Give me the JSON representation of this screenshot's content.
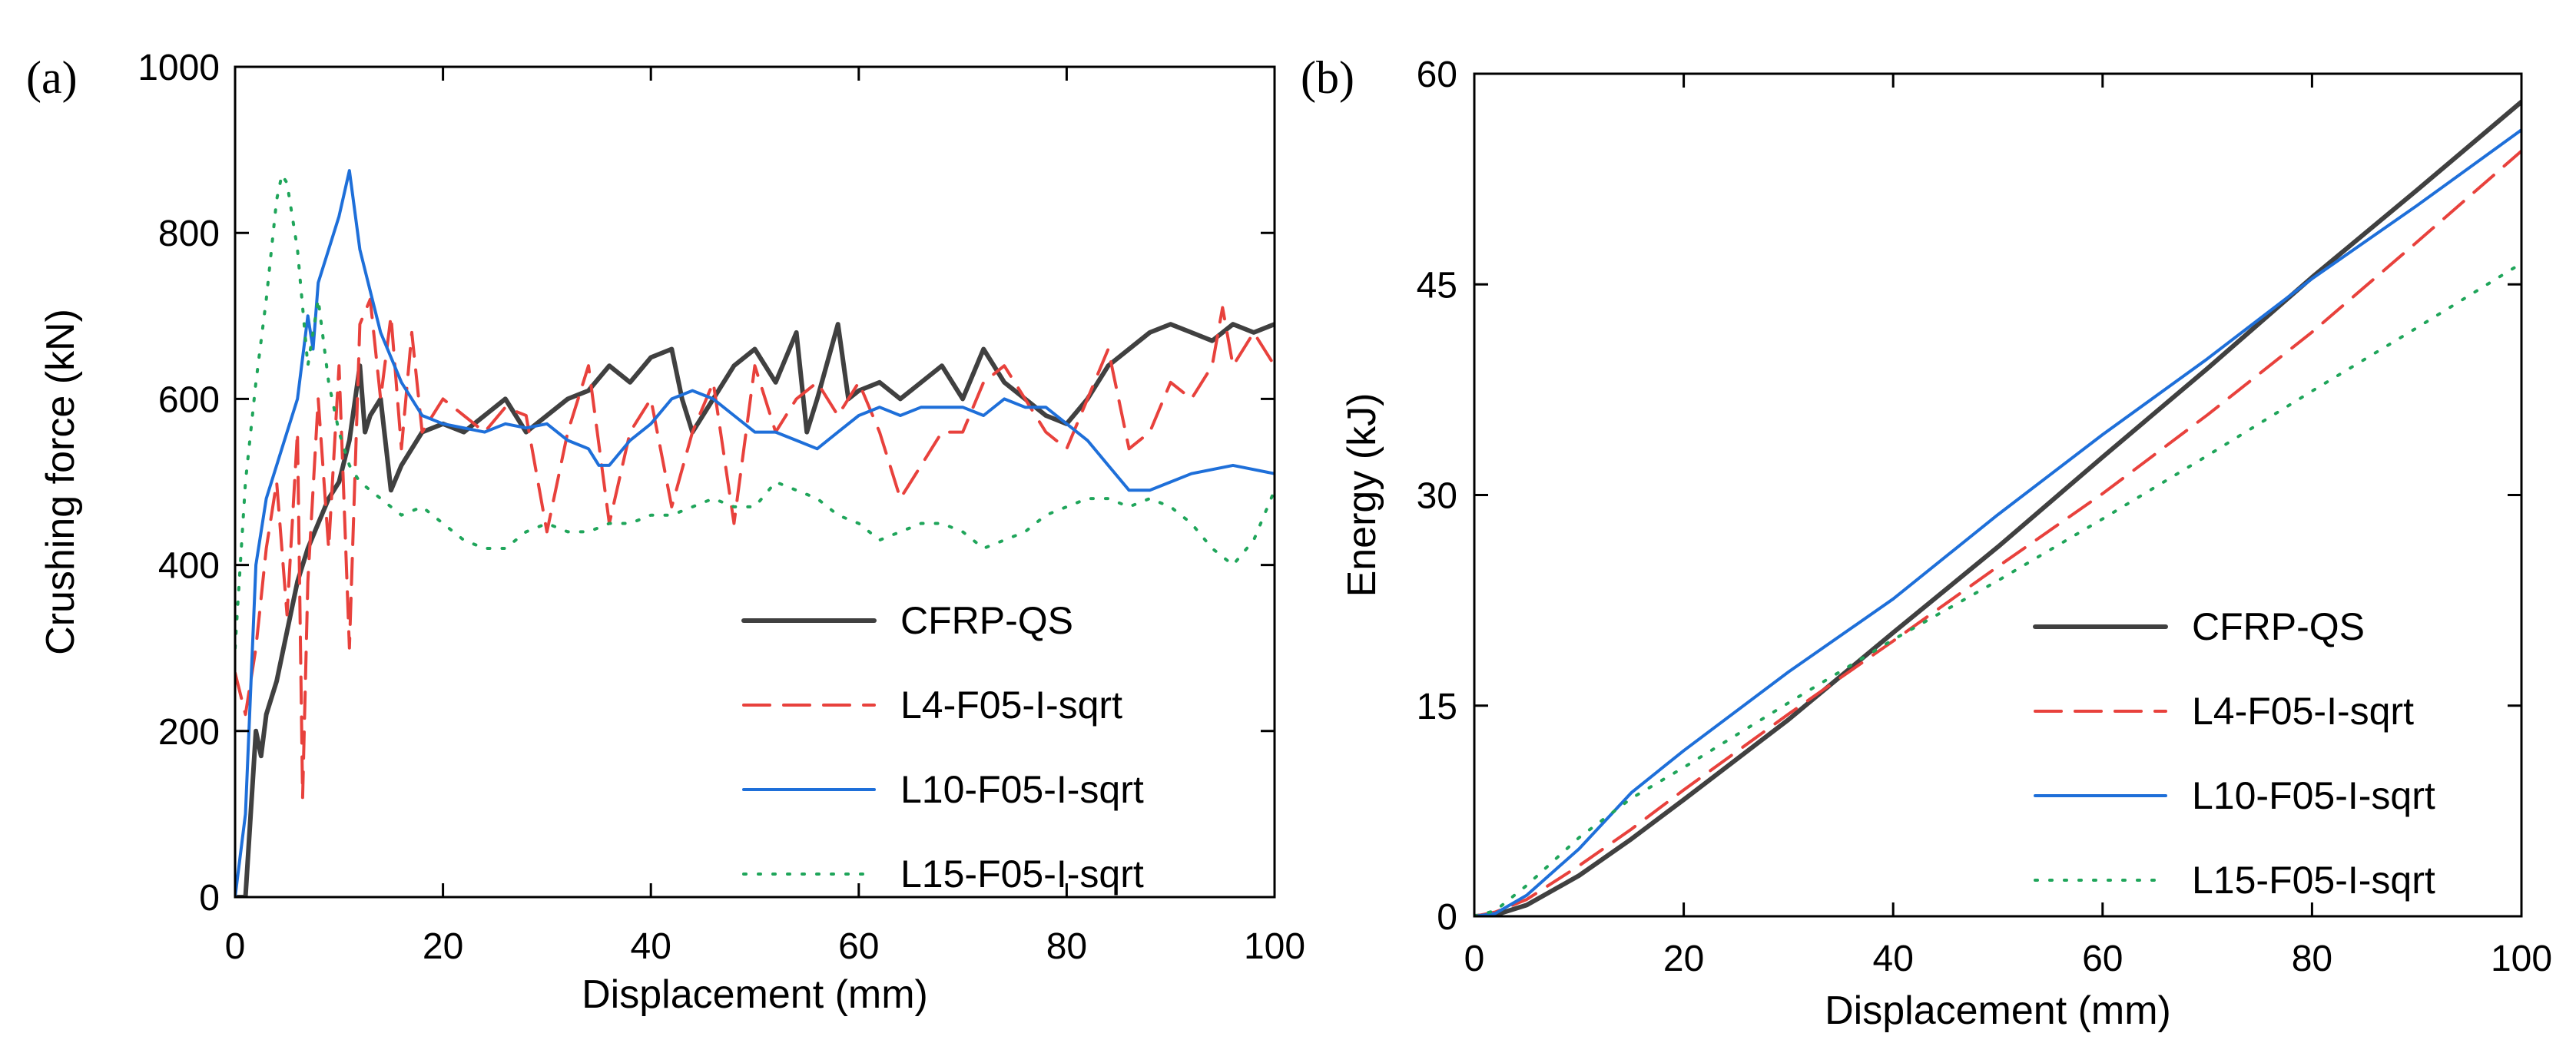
{
  "chart_data": [
    {
      "panel_label": "(a)",
      "type": "line",
      "xlabel": "Displacement (mm)",
      "ylabel": "Crushing force (kN)",
      "xlim": [
        0,
        100
      ],
      "ylim": [
        0,
        1000
      ],
      "xticks": [
        0,
        20,
        40,
        60,
        80,
        100
      ],
      "yticks": [
        0,
        200,
        400,
        600,
        800,
        1000
      ],
      "legend_position": "bottom-right",
      "series": [
        {
          "name": "CFRP-QS",
          "color": "#404040",
          "dash": "solid",
          "width": 6,
          "x": [
            0,
            1,
            1.5,
            2,
            2.5,
            3,
            4,
            5,
            6,
            7,
            8,
            9,
            10,
            11,
            12,
            12.5,
            13,
            14,
            15,
            16,
            18,
            20,
            22,
            24,
            26,
            28,
            30,
            32,
            34,
            36,
            38,
            40,
            42,
            43,
            44,
            46,
            48,
            50,
            52,
            54,
            55,
            56,
            58,
            59,
            60,
            62,
            64,
            66,
            68,
            70,
            72,
            74,
            76,
            78,
            80,
            82,
            84,
            86,
            88,
            90,
            92,
            94,
            96,
            98,
            100
          ],
          "values": [
            0,
            0,
            100,
            200,
            170,
            220,
            260,
            320,
            380,
            420,
            450,
            480,
            500,
            550,
            640,
            560,
            580,
            600,
            490,
            520,
            560,
            570,
            560,
            580,
            600,
            560,
            580,
            600,
            610,
            640,
            620,
            650,
            660,
            600,
            560,
            600,
            640,
            660,
            620,
            680,
            560,
            600,
            690,
            600,
            610,
            620,
            600,
            620,
            640,
            600,
            660,
            620,
            600,
            580,
            570,
            600,
            640,
            660,
            680,
            690,
            680,
            670,
            690,
            680,
            690
          ]
        },
        {
          "name": "L4-F05-I-sqrt",
          "color": "#e8413c",
          "dash": "dashed",
          "width": 4,
          "x": [
            0,
            1,
            2,
            3,
            4,
            5,
            6,
            6.5,
            7,
            8,
            9,
            10,
            11,
            12,
            13,
            14,
            15,
            16,
            17,
            18,
            20,
            22,
            24,
            26,
            28,
            30,
            32,
            34,
            36,
            38,
            40,
            42,
            44,
            46,
            48,
            50,
            52,
            54,
            56,
            58,
            60,
            62,
            64,
            66,
            68,
            70,
            72,
            74,
            76,
            78,
            80,
            82,
            84,
            86,
            88,
            90,
            92,
            94,
            95,
            96,
            98,
            100
          ],
          "values": [
            270,
            220,
            300,
            420,
            500,
            340,
            560,
            120,
            380,
            600,
            420,
            640,
            300,
            690,
            720,
            600,
            700,
            540,
            680,
            560,
            600,
            580,
            560,
            590,
            580,
            440,
            560,
            640,
            450,
            560,
            600,
            470,
            560,
            620,
            450,
            640,
            560,
            600,
            620,
            580,
            620,
            560,
            480,
            520,
            560,
            560,
            620,
            640,
            600,
            560,
            540,
            600,
            660,
            540,
            560,
            620,
            600,
            640,
            710,
            640,
            680,
            640
          ]
        },
        {
          "name": "L10-F05-I-sqrt",
          "color": "#1e6fd9",
          "dash": "solid",
          "width": 4,
          "x": [
            0,
            1,
            2,
            3,
            4,
            5,
            6,
            7,
            7.5,
            8,
            9,
            10,
            11,
            12,
            13,
            14,
            16,
            18,
            20,
            22,
            24,
            26,
            28,
            30,
            32,
            34,
            35,
            36,
            38,
            40,
            42,
            44,
            46,
            48,
            50,
            52,
            54,
            56,
            58,
            60,
            62,
            64,
            66,
            68,
            70,
            72,
            74,
            76,
            78,
            80,
            82,
            84,
            86,
            88,
            90,
            92,
            94,
            96,
            98,
            100
          ],
          "values": [
            0,
            100,
            400,
            480,
            520,
            560,
            600,
            700,
            660,
            740,
            780,
            820,
            875,
            780,
            730,
            680,
            620,
            580,
            570,
            565,
            560,
            570,
            565,
            570,
            550,
            540,
            520,
            520,
            550,
            570,
            600,
            610,
            600,
            580,
            560,
            560,
            550,
            540,
            560,
            580,
            590,
            580,
            590,
            590,
            590,
            580,
            600,
            590,
            590,
            570,
            550,
            520,
            490,
            490,
            500,
            510,
            515,
            520,
            515,
            510
          ]
        },
        {
          "name": "L15-F05-I-sqrt",
          "color": "#1fa55a",
          "dash": "dotted",
          "width": 4,
          "x": [
            0,
            1,
            2,
            3,
            4,
            4.5,
            5,
            6,
            7,
            8,
            9,
            10,
            11,
            12,
            14,
            16,
            18,
            20,
            22,
            24,
            26,
            28,
            30,
            32,
            34,
            36,
            38,
            40,
            42,
            44,
            46,
            48,
            50,
            52,
            54,
            56,
            58,
            60,
            62,
            64,
            66,
            68,
            70,
            72,
            74,
            76,
            78,
            80,
            82,
            84,
            86,
            88,
            90,
            92,
            94,
            96,
            98,
            100
          ],
          "values": [
            300,
            500,
            620,
            720,
            840,
            870,
            860,
            780,
            640,
            720,
            620,
            560,
            520,
            500,
            480,
            460,
            470,
            450,
            430,
            420,
            420,
            440,
            450,
            440,
            440,
            450,
            450,
            460,
            460,
            470,
            480,
            470,
            470,
            500,
            490,
            480,
            460,
            450,
            430,
            440,
            450,
            450,
            440,
            420,
            430,
            440,
            460,
            470,
            480,
            480,
            470,
            480,
            470,
            450,
            420,
            400,
            430,
            490
          ]
        }
      ]
    },
    {
      "panel_label": "(b)",
      "type": "line",
      "xlabel": "Displacement (mm)",
      "ylabel": "Energy (kJ)",
      "xlim": [
        0,
        100
      ],
      "ylim": [
        0,
        60
      ],
      "xticks": [
        0,
        20,
        40,
        60,
        80,
        100
      ],
      "yticks": [
        0,
        15,
        30,
        45,
        60
      ],
      "legend_position": "bottom-right",
      "series": [
        {
          "name": "CFRP-QS",
          "color": "#404040",
          "dash": "solid",
          "width": 6,
          "x": [
            0,
            2,
            5,
            10,
            15,
            20,
            30,
            40,
            50,
            60,
            70,
            80,
            90,
            100
          ],
          "values": [
            0,
            0.1,
            0.8,
            2.9,
            5.5,
            8.3,
            14,
            20.2,
            26.3,
            32.7,
            39,
            45.5,
            51.7,
            58
          ]
        },
        {
          "name": "L4-F05-I-sqrt",
          "color": "#e8413c",
          "dash": "dashed",
          "width": 4,
          "x": [
            0,
            2,
            5,
            10,
            15,
            20,
            30,
            40,
            50,
            60,
            70,
            80,
            90,
            100
          ],
          "values": [
            0,
            0.3,
            1.2,
            3.6,
            6.2,
            9,
            14.4,
            19.6,
            24.9,
            30.1,
            35.7,
            41.6,
            48,
            54.5
          ]
        },
        {
          "name": "L10-F05-I-sqrt",
          "color": "#1e6fd9",
          "dash": "solid",
          "width": 4,
          "x": [
            0,
            2,
            5,
            10,
            15,
            20,
            30,
            40,
            50,
            60,
            70,
            80,
            90,
            100
          ],
          "values": [
            0,
            0.2,
            1.5,
            4.8,
            8.8,
            11.8,
            17.4,
            22.6,
            28.6,
            34.3,
            39.7,
            45.4,
            50.6,
            56
          ]
        },
        {
          "name": "L15-F05-I-sqrt",
          "color": "#1fa55a",
          "dash": "dotted",
          "width": 4,
          "x": [
            0,
            2,
            5,
            10,
            15,
            20,
            30,
            40,
            50,
            60,
            70,
            80,
            90,
            100
          ],
          "values": [
            0,
            0.4,
            2.2,
            5.6,
            8.4,
            10.6,
            15.2,
            19.7,
            23.9,
            28.3,
            32.8,
            37.4,
            41.9,
            46.5
          ]
        }
      ]
    }
  ]
}
